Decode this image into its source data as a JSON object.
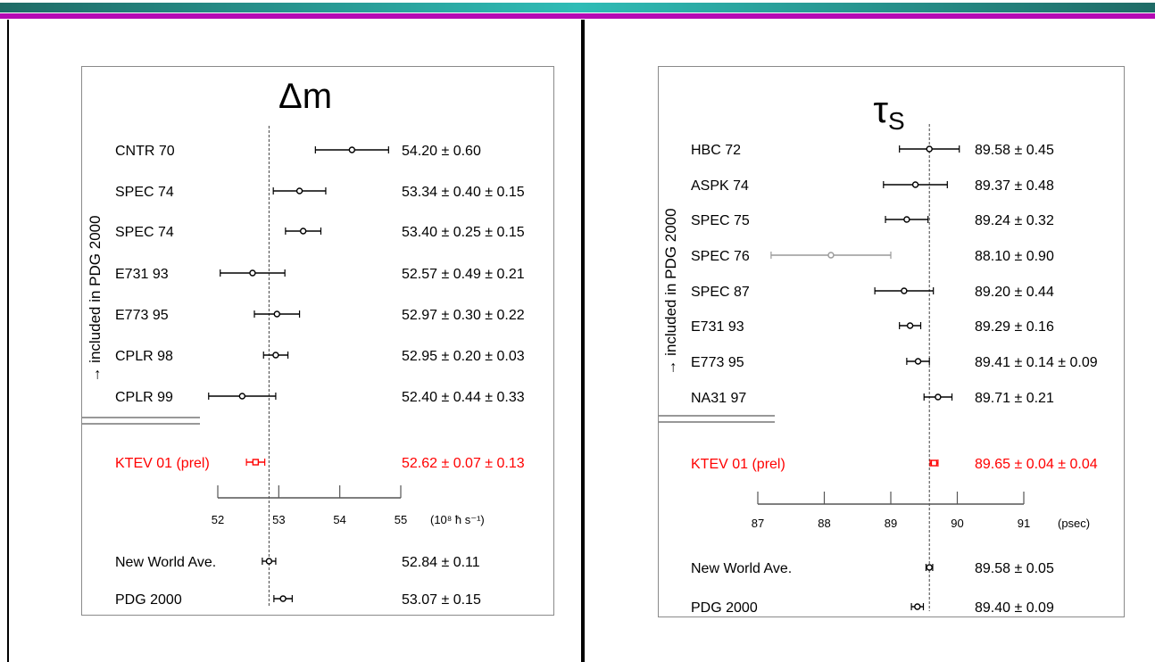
{
  "slide": {
    "accent_colors": {
      "teal": "#2b9c98",
      "magenta": "#b40ab4"
    }
  },
  "chart_data": [
    {
      "type": "scatter",
      "title": "Δm",
      "side_label": "→ included in PDG 2000",
      "axis": {
        "ticks": [
          "52",
          "53",
          "54",
          "55"
        ],
        "unit": "(10⁸ ħ s⁻¹)",
        "xlim": [
          52,
          55
        ]
      },
      "reference_line": 52.84,
      "measurements": [
        {
          "label": "CNTR 70",
          "value": 54.2,
          "error": 0.6,
          "text": "54.20 ±  0.60",
          "group": "included"
        },
        {
          "label": "SPEC 74",
          "value": 53.34,
          "error": 0.43,
          "text": "53.34 ±  0.40 ± 0.15",
          "group": "included"
        },
        {
          "label": "SPEC 74",
          "value": 53.4,
          "error": 0.29,
          "text": "53.40 ±  0.25 ± 0.15",
          "group": "included"
        },
        {
          "label": "E731 93",
          "value": 52.57,
          "error": 0.53,
          "text": "52.57 ±  0.49 ± 0.21",
          "group": "included"
        },
        {
          "label": "E773 95",
          "value": 52.97,
          "error": 0.37,
          "text": "52.97 ±  0.30 ± 0.22",
          "group": "included"
        },
        {
          "label": "CPLR 98",
          "value": 52.95,
          "error": 0.2,
          "text": "52.95 ±  0.20 ± 0.03",
          "group": "included"
        },
        {
          "label": "CPLR 99",
          "value": 52.4,
          "error": 0.55,
          "text": "52.40 ±  0.44 ± 0.33",
          "group": "included"
        },
        {
          "label": "KTEV 01 (prel)",
          "value": 52.62,
          "error": 0.15,
          "text": "52.62 ±  0.07 ± 0.13",
          "group": "new",
          "color": "#ff0000"
        }
      ],
      "summaries": [
        {
          "label": "New World Ave.",
          "value": 52.84,
          "error": 0.11,
          "text": "52.84 ±  0.11"
        },
        {
          "label": "PDG 2000",
          "value": 53.07,
          "error": 0.15,
          "text": "53.07 ±  0.15"
        }
      ]
    },
    {
      "type": "scatter",
      "title": "τS",
      "side_label": "→ included in PDG 2000",
      "axis": {
        "ticks": [
          "87",
          "88",
          "89",
          "90",
          "91"
        ],
        "unit": "(psec)",
        "xlim": [
          87,
          91
        ]
      },
      "reference_line": 89.58,
      "measurements": [
        {
          "label": "HBC 72",
          "value": 89.58,
          "error": 0.45,
          "text": "89.58 ±  0.45",
          "group": "included"
        },
        {
          "label": "ASPK 74",
          "value": 89.37,
          "error": 0.48,
          "text": "89.37 ±  0.48",
          "group": "included"
        },
        {
          "label": "SPEC 75",
          "value": 89.24,
          "error": 0.32,
          "text": "89.24 ±  0.32",
          "group": "included"
        },
        {
          "label": "SPEC 76",
          "value": 88.1,
          "error": 0.9,
          "text": "88.10 ±  0.90",
          "group": "included",
          "color": "#999999"
        },
        {
          "label": "SPEC 87",
          "value": 89.2,
          "error": 0.44,
          "text": "89.20 ±  0.44",
          "group": "included"
        },
        {
          "label": "E731 93",
          "value": 89.29,
          "error": 0.16,
          "text": "89.29 ±  0.16",
          "group": "included"
        },
        {
          "label": "E773 95",
          "value": 89.41,
          "error": 0.17,
          "text": "89.41 ±  0.14 ± 0.09",
          "group": "included"
        },
        {
          "label": "NA31 97",
          "value": 89.71,
          "error": 0.21,
          "text": "89.71 ±  0.21",
          "group": "included"
        },
        {
          "label": "KTEV 01 (prel)",
          "value": 89.65,
          "error": 0.06,
          "text": "89.65 ±  0.04 ± 0.04",
          "group": "new",
          "color": "#ff0000"
        }
      ],
      "summaries": [
        {
          "label": "New World Ave.",
          "value": 89.58,
          "error": 0.05,
          "text": "89.58 ±  0.05"
        },
        {
          "label": "PDG 2000",
          "value": 89.4,
          "error": 0.09,
          "text": "89.40 ±  0.09"
        }
      ]
    }
  ]
}
